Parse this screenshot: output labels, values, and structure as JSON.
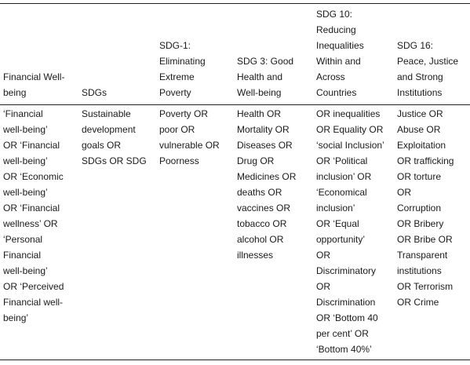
{
  "table": {
    "header": [
      [
        "Financial Well-",
        "being"
      ],
      [
        "SDGs"
      ],
      [
        "SDG-1:",
        "Eliminating",
        "Extreme",
        "Poverty"
      ],
      [
        "SDG 3: Good",
        "Health and",
        "Well-being"
      ],
      [
        "SDG 10:",
        "Reducing",
        "Inequalities",
        "Within and",
        "Across",
        "Countries"
      ],
      [
        "SDG 16:",
        "Peace, Justice",
        "and Strong",
        "Institutions"
      ]
    ],
    "rows": [
      [
        [
          "‘Financial",
          "well-being’",
          "OR ‘Financial",
          "well-being’",
          "OR ‘Economic",
          "well-being’",
          "OR ‘Financial",
          "wellness’ OR",
          "‘Personal",
          "Financial",
          "well-being’",
          "OR ‘Perceived",
          "Financial well-",
          "being’"
        ],
        [
          "Sustainable",
          "development",
          "goals OR",
          "SDGs OR SDG"
        ],
        [
          "Poverty OR",
          "poor OR",
          "vulnerable OR",
          "Poorness"
        ],
        [
          "Health OR",
          "Mortality OR",
          "Diseases OR",
          "Drug OR",
          "Medicines OR",
          "deaths OR",
          "vaccines OR",
          "tobacco OR",
          "alcohol OR",
          "illnesses"
        ],
        [
          "OR inequalities",
          "OR Equality OR",
          "‘social Inclusion’",
          "OR ‘Political",
          "inclusion’ OR",
          "‘Economical",
          "inclusion’",
          "OR ‘Equal",
          "opportunity’",
          "OR",
          "Discriminatory",
          "OR",
          "Discrimination",
          "OR ‘Bottom 40",
          "per cent’ OR",
          "‘Bottom 40%’"
        ],
        [
          "Justice OR",
          "Abuse OR",
          "Exploitation",
          "OR trafficking",
          "OR torture",
          "OR",
          "Corruption",
          "OR Bribery",
          "OR Bribe OR",
          "Transparent",
          "institutions",
          "OR Terrorism",
          "OR Crime"
        ]
      ]
    ]
  }
}
